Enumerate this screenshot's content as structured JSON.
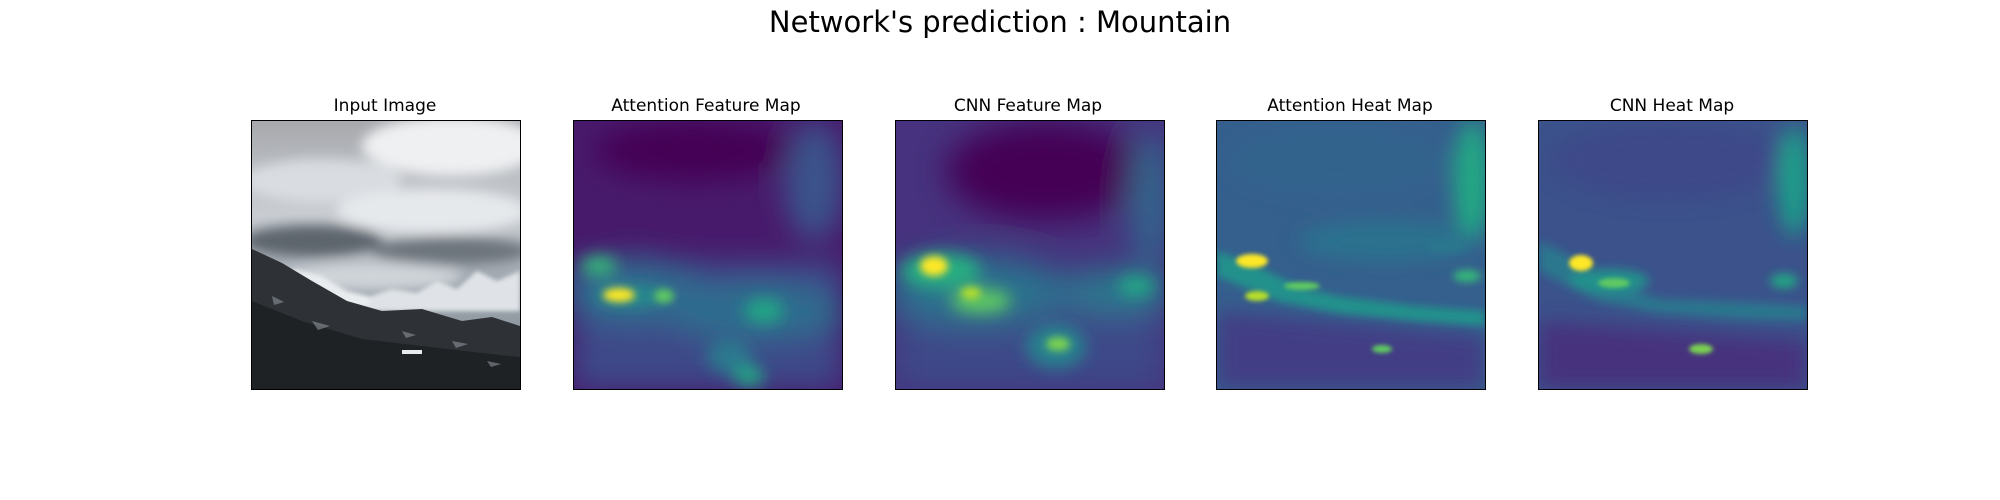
{
  "figure": {
    "suptitle": "Network's prediction : Mountain"
  },
  "chart_data": {
    "type": "heatmap",
    "panels": [
      {
        "id": "input",
        "title": "Input Image",
        "content": "grayscale photograph of snowy mountains under cloudy sky",
        "colormap": "gray"
      },
      {
        "id": "attn-feature",
        "title": "Attention Feature Map",
        "colormap": "viridis"
      },
      {
        "id": "cnn-feature",
        "title": "CNN Feature Map",
        "colormap": "viridis"
      },
      {
        "id": "attn-heat",
        "title": "Attention Heat Map",
        "colormap": "viridis"
      },
      {
        "id": "cnn-heat",
        "title": "CNN Heat Map",
        "colormap": "viridis"
      }
    ],
    "axes_visible": false,
    "colors": {
      "viridis_low": "#440154",
      "viridis_mid": "#21918c",
      "viridis_high": "#fde725"
    }
  }
}
